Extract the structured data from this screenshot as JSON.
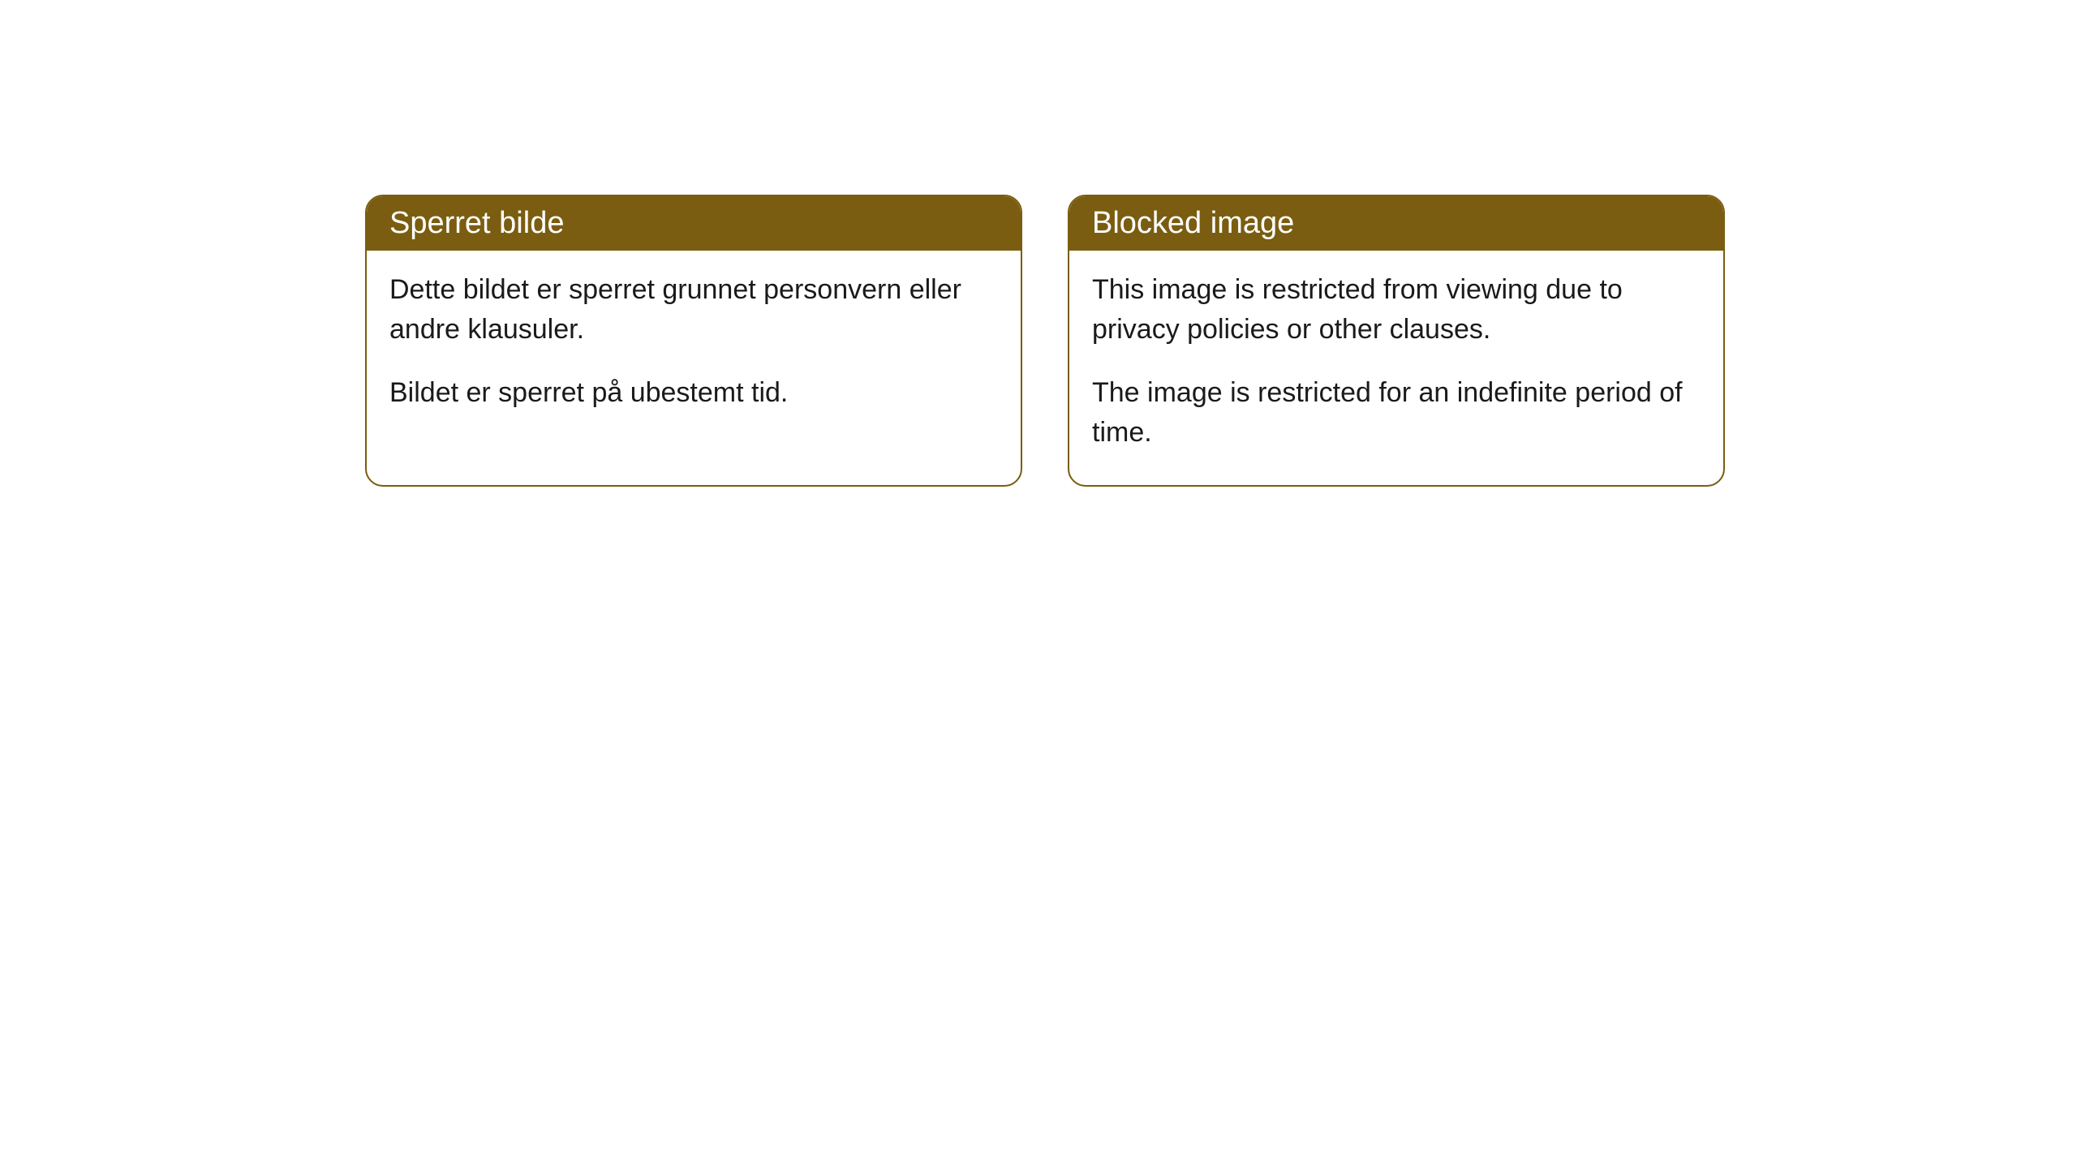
{
  "styling": {
    "card_border_color": "#7a5d10",
    "card_header_bg": "#7a5d10",
    "card_header_text_color": "#ffffff",
    "card_body_bg": "#ffffff",
    "card_body_text_color": "#1a1a1a",
    "card_border_radius": 22,
    "header_fontsize": 38,
    "body_fontsize": 34,
    "page_bg": "#ffffff"
  },
  "cards": {
    "left": {
      "title": "Sperret bilde",
      "paragraph1": "Dette bildet er sperret grunnet personvern eller andre klausuler.",
      "paragraph2": "Bildet er sperret på ubestemt tid."
    },
    "right": {
      "title": "Blocked image",
      "paragraph1": "This image is restricted from viewing due to privacy policies or other clauses.",
      "paragraph2": "The image is restricted for an indefinite period of time."
    }
  }
}
